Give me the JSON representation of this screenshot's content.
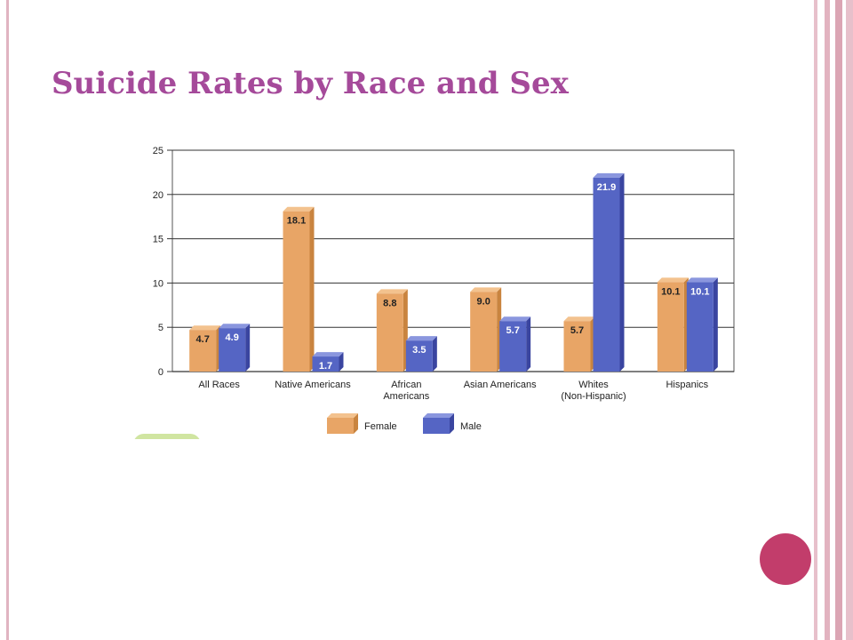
{
  "slide": {
    "title": "Suicide Rates by Race and Sex"
  },
  "colors": {
    "title": "#a54a9a",
    "female": "#e8a566",
    "female_side": "#c9843f",
    "female_top": "#f3c28e",
    "male": "#5565c4",
    "male_side": "#3a45a0",
    "male_top": "#8a96de",
    "nav_circle": "#c23d6b",
    "border": "#e0b4c1"
  },
  "chart_data": {
    "type": "bar",
    "categories": [
      [
        "All Races"
      ],
      [
        "Native Americans"
      ],
      [
        "African",
        "Americans"
      ],
      [
        "Asian Americans"
      ],
      [
        "Whites",
        "(Non-Hispanic)"
      ],
      [
        "Hispanics"
      ]
    ],
    "series": [
      {
        "name": "Female",
        "values": [
          4.7,
          18.1,
          8.8,
          9.0,
          5.7,
          10.1
        ]
      },
      {
        "name": "Male",
        "values": [
          4.9,
          1.7,
          3.5,
          5.7,
          21.9,
          10.1
        ]
      }
    ],
    "value_labels": [
      [
        "4.7",
        "18.1",
        "8.8",
        "9.0",
        "5.7",
        "10.1"
      ],
      [
        "4.9",
        "1.7",
        "3.5",
        "5.7",
        "21.9",
        "10.1"
      ]
    ],
    "title": "",
    "xlabel": "",
    "ylabel": "",
    "ylim": [
      0,
      25
    ],
    "yticks": [
      0,
      5,
      10,
      15,
      20,
      25
    ],
    "grid": true,
    "legend": "bottom-center",
    "legend_entries": [
      "Female",
      "Male"
    ]
  }
}
